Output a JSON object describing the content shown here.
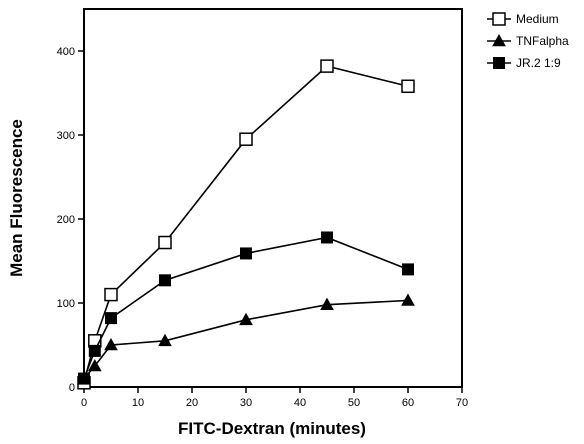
{
  "chart_data": {
    "type": "line",
    "title": "",
    "xlabel": "FITC-Dextran (minutes)",
    "ylabel": "Mean Fluorescence",
    "xlim": [
      0,
      70
    ],
    "ylim": [
      0,
      450
    ],
    "xticks": [
      "0",
      "10",
      "20",
      "30",
      "40",
      "50",
      "60",
      "70"
    ],
    "yticks": [
      "0",
      "100",
      "200",
      "300",
      "400"
    ],
    "grid": false,
    "legend_position": "top-right",
    "series": [
      {
        "name": "Medium",
        "marker": "open-square",
        "points": [
          [
            0,
            5
          ],
          [
            2,
            55
          ],
          [
            5,
            110
          ],
          [
            15,
            172
          ],
          [
            30,
            295
          ],
          [
            45,
            382
          ],
          [
            60,
            358
          ]
        ]
      },
      {
        "name": "TNFalpha",
        "marker": "filled-triangle",
        "points": [
          [
            0,
            10
          ],
          [
            2,
            25
          ],
          [
            5,
            50
          ],
          [
            15,
            55
          ],
          [
            30,
            80
          ],
          [
            45,
            98
          ],
          [
            60,
            103
          ]
        ]
      },
      {
        "name": "JR.2 1:9",
        "marker": "filled-square",
        "points": [
          [
            0,
            10
          ],
          [
            2,
            43
          ],
          [
            5,
            82
          ],
          [
            15,
            127
          ],
          [
            30,
            159
          ],
          [
            45,
            178
          ],
          [
            60,
            140
          ]
        ]
      }
    ]
  },
  "colors": {
    "line": "#000000",
    "background": "#ffffff"
  }
}
